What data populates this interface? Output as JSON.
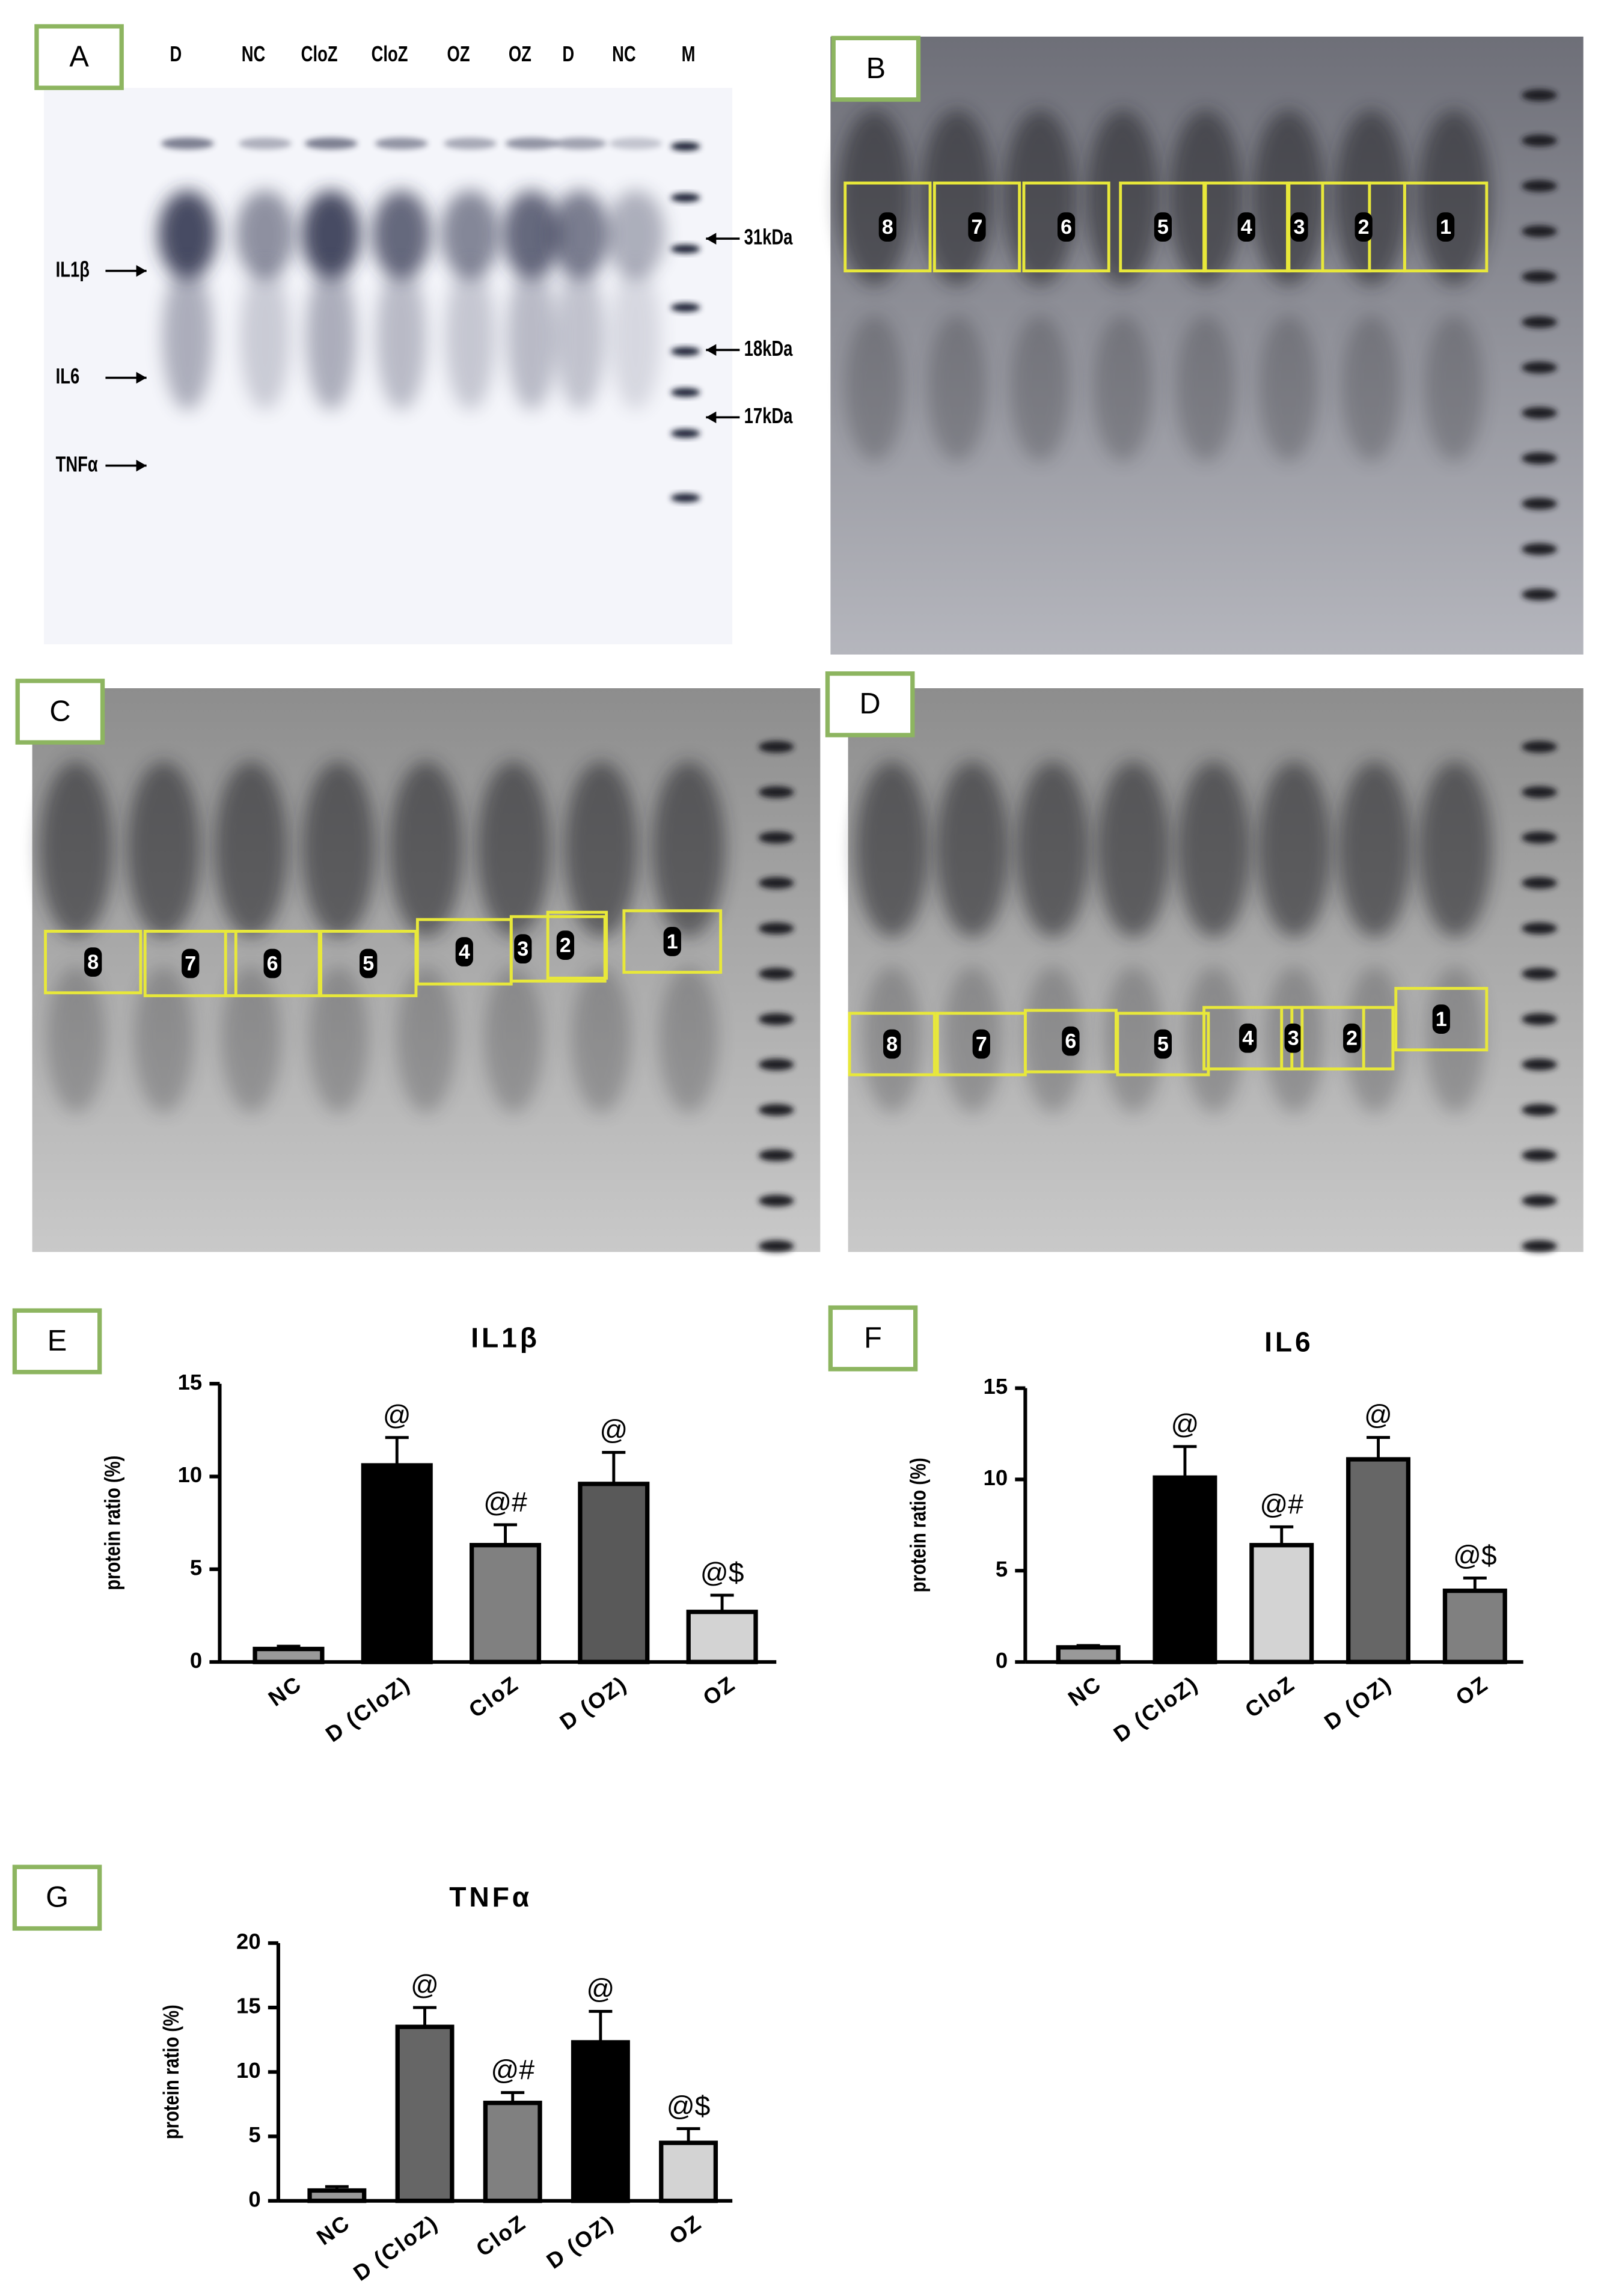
{
  "blots": [
    {
      "label": "A",
      "lanes": [
        "D",
        "NC",
        "CloZ",
        "CloZ",
        "OZ",
        "OZ",
        "D",
        "NC",
        "M"
      ],
      "proteins": [
        "IL1β",
        "IL6",
        "TNFα"
      ],
      "markers": [
        "31kDa",
        "18kDa",
        "17kDa"
      ]
    },
    {
      "label": "B",
      "boxes": [
        "8",
        "7",
        "6",
        "5",
        "4",
        "3",
        "2",
        "1"
      ]
    },
    {
      "label": "C",
      "boxes": [
        "8",
        "7",
        "6",
        "5",
        "4",
        "3",
        "2",
        "1"
      ]
    },
    {
      "label": "D",
      "boxes": [
        "8",
        "7",
        "6",
        "5",
        "4",
        "3",
        "2",
        "1"
      ]
    }
  ],
  "chart_data": [
    {
      "type": "bar",
      "label": "E",
      "title": "IL1β",
      "y_label": "protein ratio (%)",
      "categories": [
        "NC",
        "D (CloZ)",
        "CloZ",
        "D (OZ)",
        "OZ"
      ],
      "values": [
        0.7,
        10.6,
        6.3,
        9.6,
        2.7
      ],
      "errors": [
        0.15,
        1.5,
        1.1,
        1.7,
        0.9
      ],
      "annotations": [
        null,
        "@",
        "@#",
        "@",
        "@$"
      ],
      "colors": [
        "#999999",
        "#000000",
        "#808080",
        "#595959",
        "#d3d3d3"
      ],
      "ylim": [
        0,
        15
      ],
      "yticks": [
        0,
        5,
        10,
        15
      ]
    },
    {
      "type": "bar",
      "label": "F",
      "title": "IL6",
      "y_label": "protein ratio (%)",
      "categories": [
        "NC",
        "D (CloZ)",
        "CloZ",
        "D (OZ)",
        "OZ"
      ],
      "values": [
        0.8,
        10.1,
        6.4,
        11.1,
        3.9
      ],
      "errors": [
        0.1,
        1.7,
        1.0,
        1.2,
        0.7
      ],
      "annotations": [
        null,
        "@",
        "@#",
        "@",
        "@$"
      ],
      "colors": [
        "#999999",
        "#000000",
        "#d3d3d3",
        "#666666",
        "#808080"
      ],
      "ylim": [
        0,
        15
      ],
      "yticks": [
        0,
        5,
        10,
        15
      ]
    },
    {
      "type": "bar",
      "label": "G",
      "title": "TNFα",
      "y_label": "protein ratio (%)",
      "categories": [
        "NC",
        "D (CloZ)",
        "CloZ",
        "D (OZ)",
        "OZ"
      ],
      "values": [
        0.8,
        13.5,
        7.6,
        12.3,
        4.5
      ],
      "errors": [
        0.3,
        1.5,
        0.8,
        2.4,
        1.1
      ],
      "annotations": [
        null,
        "@",
        "@#",
        "@",
        "@$"
      ],
      "colors": [
        "#999999",
        "#666666",
        "#808080",
        "#000000",
        "#d3d3d3"
      ],
      "ylim": [
        0,
        20
      ],
      "yticks": [
        0,
        5,
        10,
        15,
        20
      ]
    }
  ]
}
